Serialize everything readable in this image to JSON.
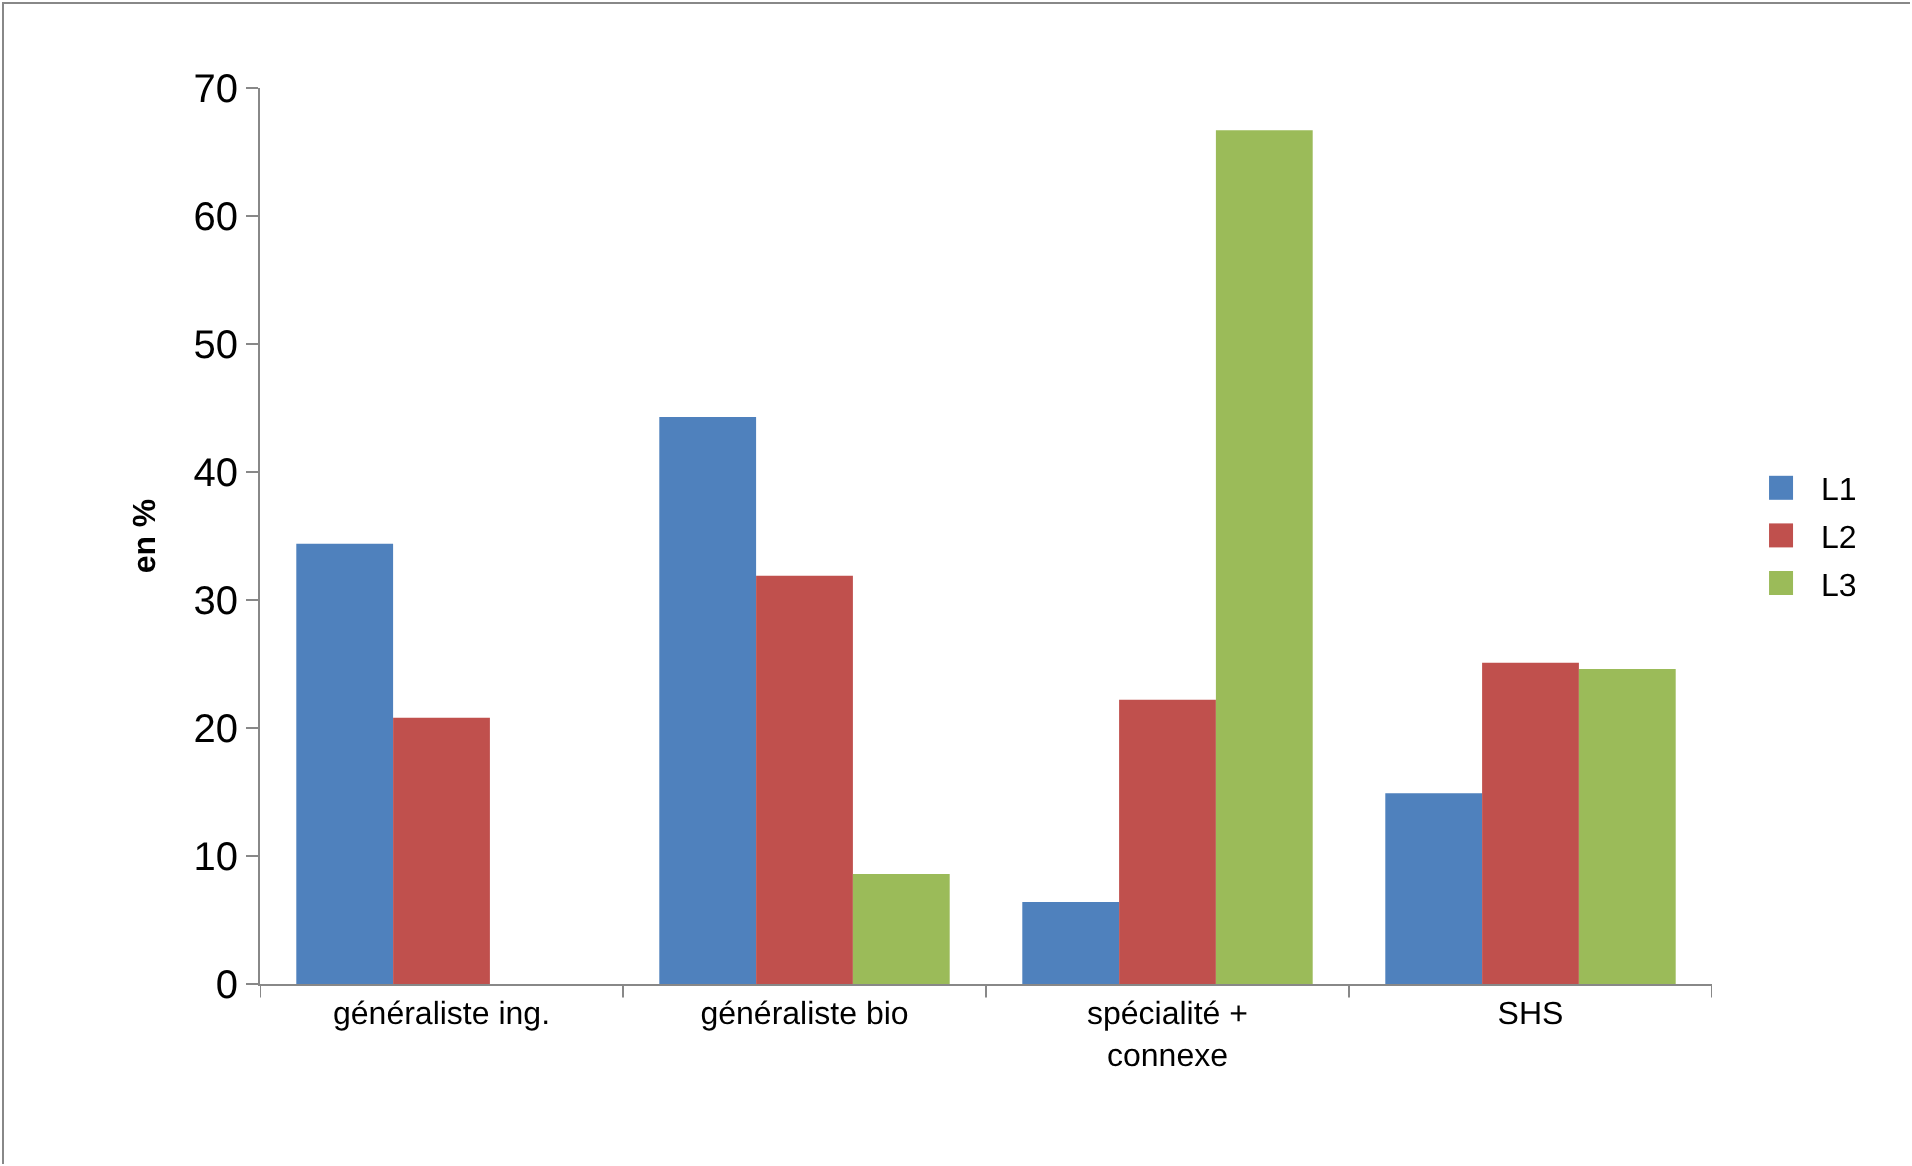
{
  "chart_data": {
    "type": "bar",
    "ylabel": "en %",
    "categories": [
      "généraliste ing.",
      "généraliste bio",
      "spécialité + connexe",
      "SHS"
    ],
    "series": [
      {
        "name": "L1",
        "color": "#4f81bd",
        "values": [
          34.4,
          44.3,
          6.4,
          14.9
        ]
      },
      {
        "name": "L2",
        "color": "#c0504d",
        "values": [
          20.8,
          31.9,
          22.2,
          25.1
        ]
      },
      {
        "name": "L3",
        "color": "#9bbb59",
        "values": [
          0,
          8.6,
          66.7,
          24.6
        ]
      }
    ],
    "ylim": [
      0,
      70
    ],
    "yticks": [
      0,
      10,
      20,
      30,
      40,
      50,
      60,
      70
    ],
    "grid": false,
    "legend": "right"
  }
}
